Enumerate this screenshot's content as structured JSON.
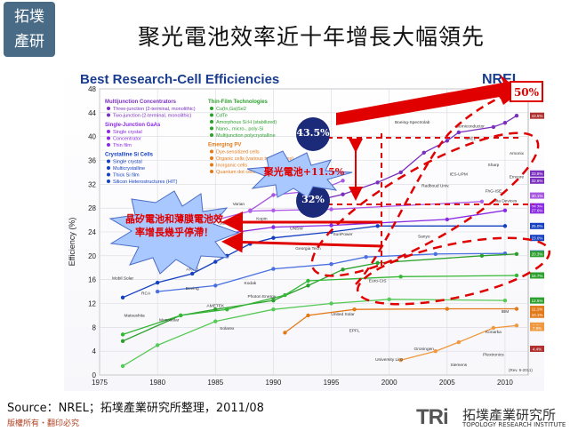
{
  "header": {
    "logo_text": "拓墣\n產研",
    "slide_title": "聚光電池效率近十年增長大幅領先"
  },
  "footer": {
    "source": "Source：NREL；拓墣產業研究所整理，2011/08",
    "copyright": "版權所有・翻印必究",
    "brand_mark": "TRi",
    "brand_cn": "拓墣產業研究所",
    "brand_en": "TOPOLOGY RESEARCH INSTITUTE"
  },
  "annotations": {
    "bubble_top": "43.5%",
    "bubble_bottom": "32%",
    "gap_label": "聚光電池+11.5%",
    "target": "50%",
    "callout": "晶矽電池和薄膜電池效率增長幾乎停滯！"
  },
  "colors": {
    "accent_red": "#e00000",
    "bubble_navy": "#1c2a7a",
    "callout_blue": "#a8c8ff",
    "multijunction": "#7b2fbe",
    "gaas": "#8a2be2",
    "crystalline_si": "#1540c0",
    "thin_film": "#2ca02c",
    "emerging": "#e37a1a"
  },
  "chart_data": {
    "type": "line",
    "title": "Best Research-Cell Efficiencies",
    "brand": "NREL",
    "xlabel": "",
    "ylabel": "Efficiency (%)",
    "xlim": [
      1975,
      2012
    ],
    "ylim": [
      0,
      48
    ],
    "x_ticks": [
      1975,
      1980,
      1985,
      1990,
      1995,
      2000,
      2005,
      2010
    ],
    "y_ticks": [
      0,
      4,
      8,
      12,
      16,
      20,
      24,
      28,
      32,
      36,
      40,
      44,
      48
    ],
    "revision": "(Rev. 9-2011)",
    "legend": [
      {
        "group": "Multijunction Concentrators",
        "items": [
          "Three-junction (2-terminal, monolithic)",
          "Two-junction (2-terminal, monolithic)"
        ]
      },
      {
        "group": "Single-Junction GaAs",
        "items": [
          "Single crystal",
          "Concentrator",
          "Thin film"
        ]
      },
      {
        "group": "Crystalline Si Cells",
        "items": [
          "Single crystal",
          "Multicrystalline",
          "Thick Si film",
          "Silicon Heterostructures (HIT)"
        ]
      },
      {
        "group": "Thin-Film Technologies",
        "items": [
          "Cu(In,Ga)Se2",
          "CdTe",
          "Amorphous Si:H (stabilized)",
          "Nano-, micro-, poly-Si",
          "Multijunction polycrystalline"
        ]
      },
      {
        "group": "Emerging PV",
        "items": [
          "Dye-sensitized cells",
          "Organic cells (various technologies)",
          "Inorganic cells",
          "Quantum dot cells"
        ]
      }
    ],
    "series": [
      {
        "name": "Three-junction (2-terminal, monolithic)",
        "color": "#7b2fbe",
        "points": [
          [
            1994,
            29.4
          ],
          [
            1996,
            30.3
          ],
          [
            1999,
            32.3
          ],
          [
            2001,
            34.0
          ],
          [
            2003,
            37.3
          ],
          [
            2005,
            39.3
          ],
          [
            2006,
            40.7
          ],
          [
            2009,
            41.6
          ],
          [
            2010,
            42.3
          ],
          [
            2011,
            43.5
          ]
        ]
      },
      {
        "name": "Two-junction (2-terminal, monolithic)",
        "color": "#a857e0",
        "points": [
          [
            1988,
            27.6
          ],
          [
            1990,
            30.2
          ],
          [
            1994,
            31.0
          ],
          [
            1996,
            32.6
          ]
        ]
      },
      {
        "name": "GaAs Single crystal",
        "color": "#8a2be2",
        "points": [
          [
            1978,
            22.0
          ],
          [
            1985,
            23.5
          ],
          [
            1990,
            24.8
          ],
          [
            1995,
            25.1
          ],
          [
            2005,
            26.1
          ],
          [
            2010,
            27.6
          ]
        ]
      },
      {
        "name": "GaAs Concentrator",
        "color": "#b05ce8",
        "points": [
          [
            1985,
            26.0
          ],
          [
            1988,
            27.5
          ],
          [
            1990,
            27.6
          ],
          [
            1995,
            27.8
          ],
          [
            2008,
            29.1
          ]
        ]
      },
      {
        "name": "Crystalline Si Single crystal",
        "color": "#1540c0",
        "points": [
          [
            1977,
            13.0
          ],
          [
            1980,
            15.5
          ],
          [
            1983,
            17.0
          ],
          [
            1985,
            19.0
          ],
          [
            1986,
            20.0
          ],
          [
            1988,
            22.0
          ],
          [
            1990,
            23.0
          ],
          [
            1995,
            24.0
          ],
          [
            1999,
            25.0
          ],
          [
            2010,
            25.0
          ]
        ]
      },
      {
        "name": "Multicrystalline Si",
        "color": "#4a70e0",
        "points": [
          [
            1980,
            14.0
          ],
          [
            1985,
            15.0
          ],
          [
            1990,
            17.8
          ],
          [
            1995,
            18.6
          ],
          [
            1998,
            19.8
          ],
          [
            2004,
            20.3
          ],
          [
            2010,
            20.4
          ]
        ]
      },
      {
        "name": "CIGS",
        "color": "#2ca02c",
        "points": [
          [
            1977,
            5.7
          ],
          [
            1982,
            10.0
          ],
          [
            1985,
            11.0
          ],
          [
            1990,
            12.5
          ],
          [
            1993,
            15.0
          ],
          [
            1996,
            17.7
          ],
          [
            1999,
            18.8
          ],
          [
            2008,
            20.0
          ],
          [
            2011,
            20.3
          ]
        ]
      },
      {
        "name": "CdTe",
        "color": "#35b835",
        "points": [
          [
            1977,
            6.8
          ],
          [
            1982,
            10.0
          ],
          [
            1986,
            11.0
          ],
          [
            1991,
            13.4
          ],
          [
            1993,
            15.8
          ],
          [
            2001,
            16.5
          ],
          [
            2011,
            16.7
          ]
        ]
      },
      {
        "name": "Amorphous Si:H",
        "color": "#57c957",
        "points": [
          [
            1977,
            1.5
          ],
          [
            1980,
            5.0
          ],
          [
            1985,
            9.0
          ],
          [
            1990,
            11.0
          ],
          [
            1995,
            12.0
          ],
          [
            2000,
            12.7
          ],
          [
            2010,
            12.5
          ]
        ]
      },
      {
        "name": "Dye-sensitized",
        "color": "#e37a1a",
        "points": [
          [
            1991,
            7.1
          ],
          [
            1993,
            10.0
          ],
          [
            1997,
            11.0
          ],
          [
            2005,
            11.1
          ],
          [
            2011,
            11.1
          ]
        ]
      },
      {
        "name": "Organic",
        "color": "#f09840",
        "points": [
          [
            2001,
            2.5
          ],
          [
            2004,
            4.0
          ],
          [
            2006,
            5.5
          ],
          [
            2009,
            7.9
          ],
          [
            2011,
            8.3
          ]
        ]
      }
    ],
    "institution_labels": [
      "Spectrolab",
      "Boeing-Spectrolab",
      "Semiconductor",
      "Sharp",
      "FhG-ISE",
      "Radboud Univ.",
      "IES-UPM",
      "NREL",
      "Varian",
      "Kopin",
      "Stanford",
      "Spire",
      "UNSW",
      "Georgia Tech",
      "Westing-house",
      "Sandia",
      "ARCO",
      "Mobil Solar",
      "RCA",
      "Boeing",
      "Kodak",
      "Matsushita",
      "Monosolar",
      "Photon Energy",
      "AMETEK",
      "Solarex",
      "United Solar",
      "EPFL",
      "University Linz",
      "Groningen",
      "Siemens",
      "Konarka",
      "Plextronics",
      "IBM",
      "Euro-CIS",
      "SunPower",
      "Sanyo",
      "Amonix",
      "Emcore",
      "Alta Devices"
    ],
    "right_axis_values": [
      "43.5%",
      "33.8%",
      "32.6%",
      "30.1%",
      "28.3%",
      "27.6%",
      "25.0%",
      "23.0%",
      "20.4%",
      "20.3%",
      "16.7%",
      "12.5%",
      "11.1%",
      "10.1%",
      "8.3%",
      "7.9%",
      "4.4%"
    ]
  }
}
